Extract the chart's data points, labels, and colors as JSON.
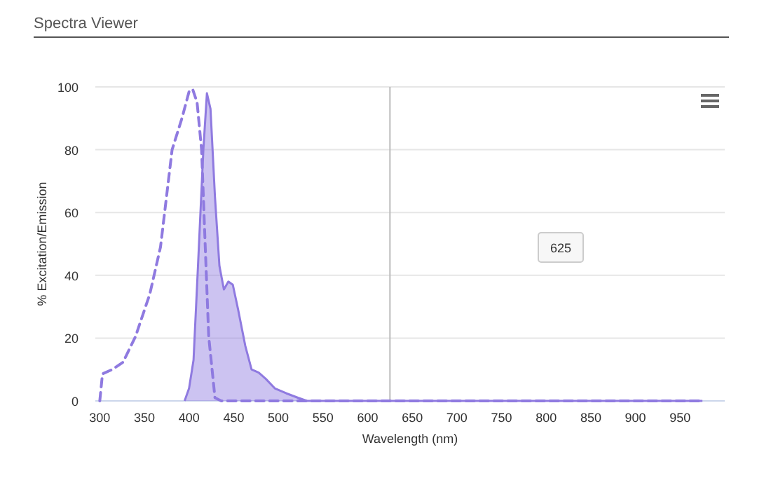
{
  "chart_data": {
    "type": "line",
    "title": "Spectra Viewer",
    "xlabel": "Wavelength (nm)",
    "ylabel": "% Excitation/Emission",
    "xlim": [
      295,
      1000
    ],
    "ylim": [
      0,
      100
    ],
    "xticks": [
      300,
      350,
      400,
      450,
      500,
      550,
      600,
      650,
      700,
      750,
      800,
      850,
      900,
      950
    ],
    "yticks": [
      0,
      20,
      40,
      60,
      80,
      100
    ],
    "grid": "y",
    "marker": "none",
    "series": [
      {
        "type": "line",
        "line_style": "dashed",
        "color": "#8f7ae0",
        "x": [
          300,
          303,
          314,
          326,
          340,
          356,
          368,
          381,
          392,
          400,
          404,
          409,
          414,
          418,
          422,
          429,
          436,
          975
        ],
        "values": [
          0,
          8.6,
          10,
          12.3,
          20.5,
          34,
          49,
          80,
          90,
          98.5,
          99.3,
          95,
          80,
          50,
          20.5,
          1,
          0,
          0
        ]
      },
      {
        "type": "area",
        "line_style": "solid",
        "color": "#8f7ae0",
        "x": [
          395,
          400,
          405,
          410,
          416,
          420,
          424,
          429,
          434,
          439,
          444,
          449,
          455,
          463,
          470,
          478,
          486,
          496,
          509,
          522,
          532,
          975
        ],
        "values": [
          0,
          4,
          13,
          43,
          80,
          98,
          93,
          65,
          43,
          35.5,
          38,
          37,
          29,
          17.5,
          10,
          9,
          7,
          4,
          2.4,
          1,
          0,
          0
        ]
      }
    ],
    "ref_lines": [
      {
        "axis": "x",
        "value": 625,
        "color": "#bbbbbb"
      }
    ],
    "annotations": [
      "625"
    ]
  }
}
